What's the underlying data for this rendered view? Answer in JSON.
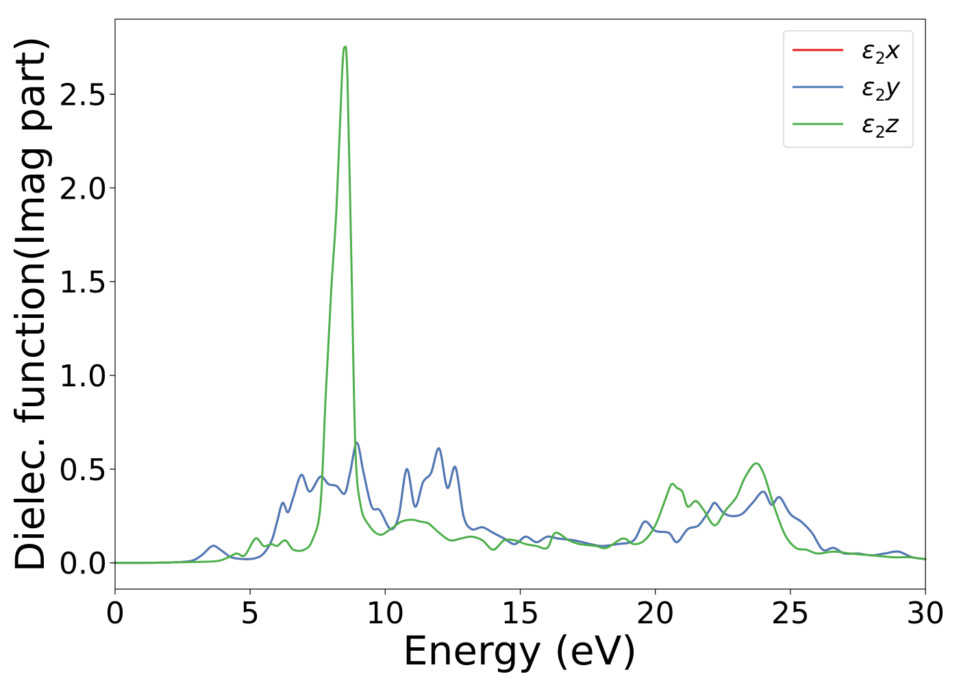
{
  "chart_data": {
    "type": "line",
    "xlabel": "Energy (eV)",
    "ylabel": "Dielec. function(Imag part)",
    "xlim": [
      0,
      30
    ],
    "ylim": [
      -0.14,
      2.9
    ],
    "xticks": [
      0,
      5,
      10,
      15,
      20,
      25,
      30
    ],
    "xtick_labels": [
      "0",
      "5",
      "10",
      "15",
      "20",
      "25",
      "30"
    ],
    "yticks": [
      0.0,
      0.5,
      1.0,
      1.5,
      2.0,
      2.5
    ],
    "ytick_labels": [
      "0.0",
      "0.5",
      "1.0",
      "1.5",
      "2.0",
      "2.5"
    ],
    "grid": false,
    "legend_position": "top-right",
    "series": [
      {
        "name": "ε₂x",
        "label_base": "ε",
        "label_sub": "2",
        "label_suffix": "x",
        "color": "#e41a1c",
        "hidden_under": "ε₂y",
        "x": [
          0,
          1,
          2,
          2.8,
          3.2,
          3.6,
          3.9,
          4.3,
          4.8,
          5.2,
          5.5,
          5.8,
          6.0,
          6.2,
          6.4,
          6.6,
          6.9,
          7.2,
          7.6,
          7.9,
          8.2,
          8.5,
          8.7,
          8.95,
          9.2,
          9.5,
          9.8,
          10.2,
          10.5,
          10.8,
          11.1,
          11.4,
          11.7,
          12.0,
          12.3,
          12.6,
          12.9,
          13.2,
          13.6,
          14.0,
          14.4,
          14.8,
          15.2,
          15.6,
          16.0,
          16.4,
          17.0,
          17.6,
          18.0,
          18.6,
          19.2,
          19.6,
          20.0,
          20.5,
          20.8,
          21.2,
          21.6,
          22.0,
          22.2,
          22.5,
          22.8,
          23.2,
          23.6,
          24.0,
          24.3,
          24.6,
          25.0,
          25.4,
          25.8,
          26.2,
          26.6,
          27.0,
          27.5,
          28.0,
          28.5,
          29.0,
          29.5,
          30.0
        ],
        "y": [
          0,
          0,
          0.002,
          0.01,
          0.04,
          0.09,
          0.07,
          0.03,
          0.02,
          0.025,
          0.05,
          0.12,
          0.22,
          0.32,
          0.27,
          0.35,
          0.47,
          0.38,
          0.46,
          0.42,
          0.41,
          0.37,
          0.48,
          0.64,
          0.48,
          0.3,
          0.28,
          0.18,
          0.25,
          0.5,
          0.3,
          0.43,
          0.48,
          0.61,
          0.4,
          0.51,
          0.25,
          0.18,
          0.19,
          0.16,
          0.13,
          0.1,
          0.14,
          0.11,
          0.14,
          0.13,
          0.12,
          0.1,
          0.09,
          0.1,
          0.12,
          0.22,
          0.17,
          0.16,
          0.11,
          0.18,
          0.2,
          0.28,
          0.32,
          0.27,
          0.25,
          0.26,
          0.32,
          0.38,
          0.31,
          0.35,
          0.26,
          0.22,
          0.16,
          0.07,
          0.08,
          0.05,
          0.05,
          0.04,
          0.05,
          0.06,
          0.03,
          0.02
        ]
      },
      {
        "name": "ε₂y",
        "label_base": "ε",
        "label_sub": "2",
        "label_suffix": "y",
        "color": "#4a7ab8",
        "x": [
          0,
          1,
          2,
          2.8,
          3.2,
          3.6,
          3.9,
          4.3,
          4.8,
          5.2,
          5.5,
          5.8,
          6.0,
          6.2,
          6.4,
          6.6,
          6.9,
          7.2,
          7.6,
          7.9,
          8.2,
          8.5,
          8.7,
          8.95,
          9.2,
          9.5,
          9.8,
          10.2,
          10.5,
          10.8,
          11.1,
          11.4,
          11.7,
          12.0,
          12.3,
          12.6,
          12.9,
          13.2,
          13.6,
          14.0,
          14.4,
          14.8,
          15.2,
          15.6,
          16.0,
          16.4,
          17.0,
          17.6,
          18.0,
          18.6,
          19.2,
          19.6,
          20.0,
          20.5,
          20.8,
          21.2,
          21.6,
          22.0,
          22.2,
          22.5,
          22.8,
          23.2,
          23.6,
          24.0,
          24.3,
          24.6,
          25.0,
          25.4,
          25.8,
          26.2,
          26.6,
          27.0,
          27.5,
          28.0,
          28.5,
          29.0,
          29.5,
          30.0
        ],
        "y": [
          0,
          0,
          0.002,
          0.01,
          0.04,
          0.09,
          0.07,
          0.03,
          0.02,
          0.025,
          0.05,
          0.12,
          0.22,
          0.32,
          0.27,
          0.35,
          0.47,
          0.38,
          0.46,
          0.42,
          0.41,
          0.37,
          0.48,
          0.64,
          0.48,
          0.3,
          0.28,
          0.18,
          0.25,
          0.5,
          0.3,
          0.43,
          0.48,
          0.61,
          0.4,
          0.51,
          0.25,
          0.18,
          0.19,
          0.16,
          0.13,
          0.1,
          0.14,
          0.11,
          0.14,
          0.13,
          0.12,
          0.1,
          0.09,
          0.1,
          0.12,
          0.22,
          0.17,
          0.16,
          0.11,
          0.18,
          0.2,
          0.28,
          0.32,
          0.27,
          0.25,
          0.26,
          0.32,
          0.38,
          0.31,
          0.35,
          0.26,
          0.22,
          0.16,
          0.07,
          0.08,
          0.05,
          0.05,
          0.04,
          0.05,
          0.06,
          0.03,
          0.02
        ]
      },
      {
        "name": "ε₂z",
        "label_base": "ε",
        "label_sub": "2",
        "label_suffix": "z",
        "color": "#4daf4a",
        "x": [
          0,
          1,
          2,
          3,
          3.8,
          4.2,
          4.5,
          4.8,
          5.2,
          5.5,
          5.8,
          6.0,
          6.3,
          6.6,
          7.0,
          7.3,
          7.6,
          7.8,
          8.0,
          8.2,
          8.4,
          8.5,
          8.6,
          8.75,
          8.9,
          9.1,
          9.4,
          9.8,
          10.2,
          10.6,
          11.0,
          11.3,
          11.6,
          12.0,
          12.4,
          12.8,
          13.2,
          13.6,
          14.0,
          14.4,
          14.8,
          15.2,
          15.6,
          16.0,
          16.3,
          16.8,
          17.2,
          17.8,
          18.2,
          18.8,
          19.2,
          19.6,
          20.0,
          20.4,
          20.6,
          20.8,
          21.0,
          21.2,
          21.5,
          21.8,
          22.2,
          22.6,
          23.0,
          23.3,
          23.7,
          24.0,
          24.4,
          24.8,
          25.2,
          25.6,
          26.0,
          26.6,
          27.2,
          28.0,
          28.8,
          29.4,
          30.0
        ],
        "y": [
          0,
          0,
          0.002,
          0.005,
          0.01,
          0.03,
          0.05,
          0.04,
          0.13,
          0.09,
          0.1,
          0.09,
          0.12,
          0.07,
          0.07,
          0.12,
          0.3,
          0.9,
          1.45,
          1.9,
          2.6,
          2.75,
          2.6,
          1.6,
          0.6,
          0.3,
          0.2,
          0.15,
          0.18,
          0.22,
          0.23,
          0.22,
          0.21,
          0.16,
          0.12,
          0.13,
          0.14,
          0.12,
          0.07,
          0.12,
          0.12,
          0.1,
          0.09,
          0.08,
          0.16,
          0.12,
          0.1,
          0.09,
          0.08,
          0.13,
          0.1,
          0.12,
          0.2,
          0.35,
          0.42,
          0.4,
          0.38,
          0.3,
          0.33,
          0.28,
          0.2,
          0.28,
          0.35,
          0.45,
          0.53,
          0.48,
          0.3,
          0.15,
          0.08,
          0.07,
          0.05,
          0.06,
          0.05,
          0.04,
          0.03,
          0.03,
          0.02
        ]
      }
    ]
  }
}
